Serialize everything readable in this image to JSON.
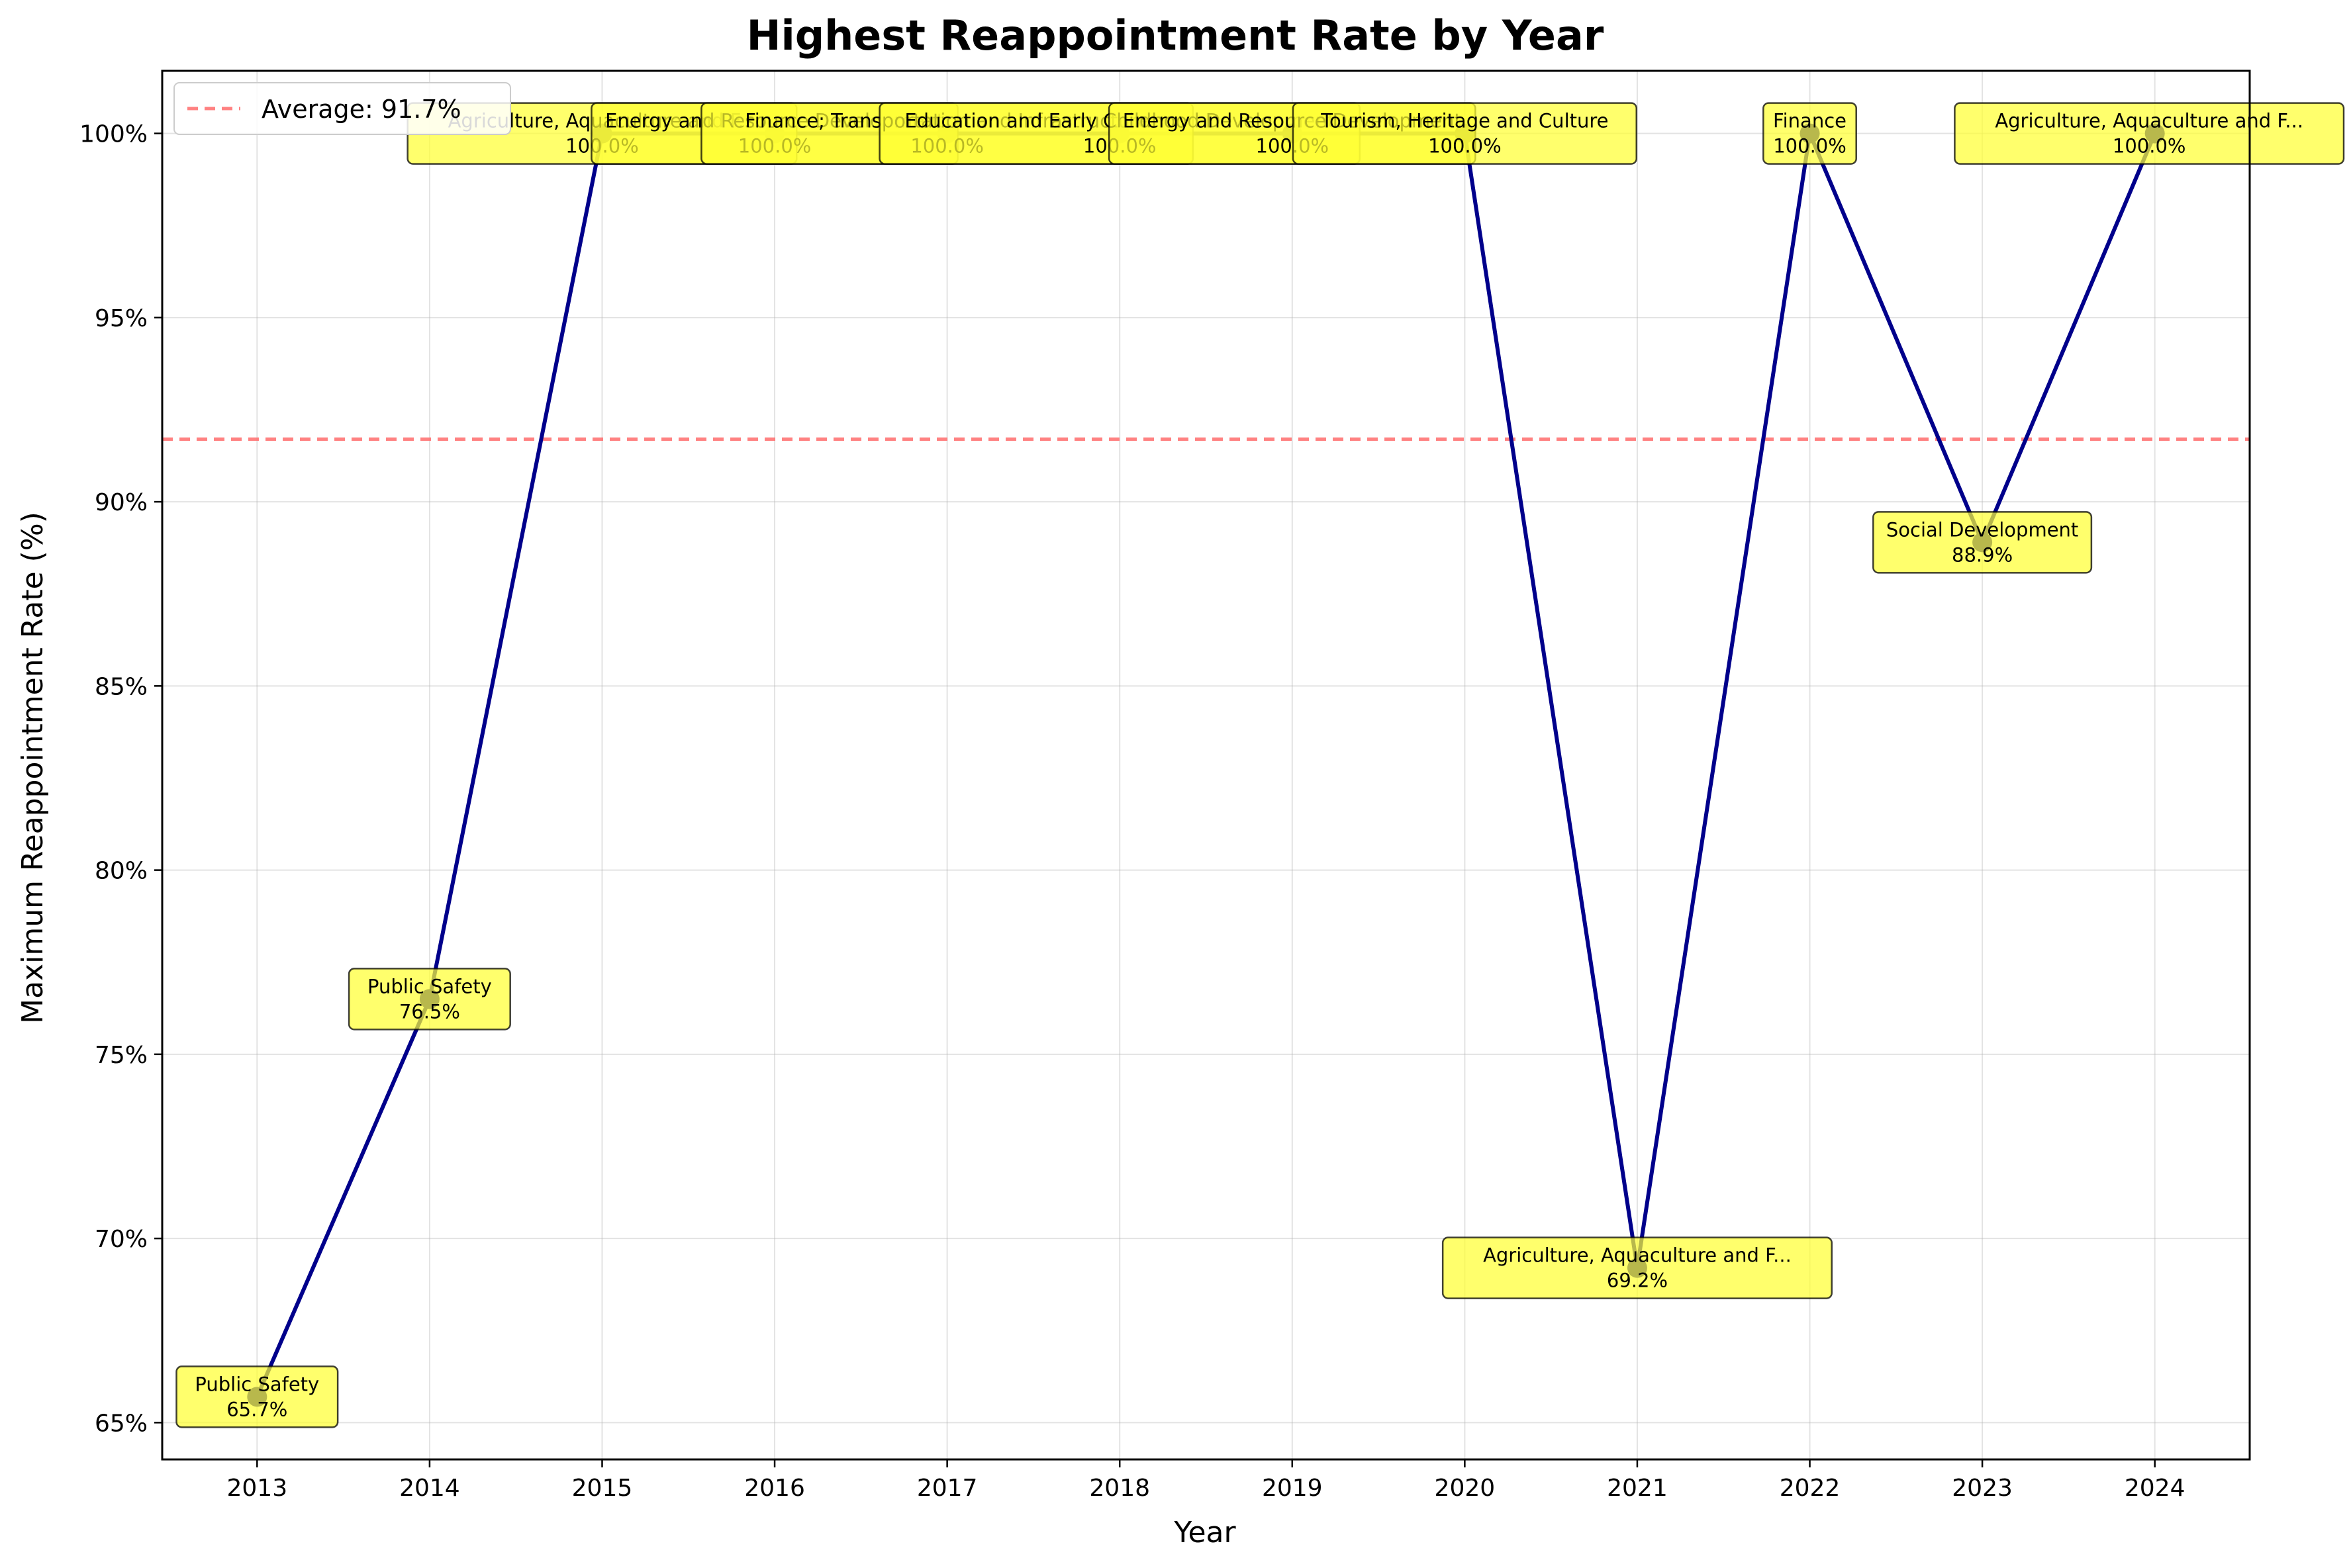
{
  "chart_data": {
    "type": "line",
    "title": "Highest Reappointment Rate by Year",
    "xlabel": "Year",
    "ylabel": "Maximum Reappointment Rate (%)",
    "ylim": [
      64,
      101.7
    ],
    "xlim": [
      2012.45,
      2024.55
    ],
    "grid": true,
    "legend_position": "top-left",
    "line_color": "#00008b",
    "average_color": "#ff6b6b",
    "annotation_fill": "#ffff33",
    "x": [
      2013,
      2014,
      2015,
      2016,
      2017,
      2018,
      2019,
      2020,
      2021,
      2022,
      2023,
      2024
    ],
    "x_tick_labels": [
      "2013",
      "2014",
      "2015",
      "2016",
      "2017",
      "2018",
      "2019",
      "2020",
      "2021",
      "2022",
      "2023",
      "2024"
    ],
    "y_ticks": [
      65,
      70,
      75,
      80,
      85,
      90,
      95,
      100
    ],
    "y_tick_labels": [
      "65%",
      "70%",
      "75%",
      "80%",
      "85%",
      "90%",
      "95%",
      "100%"
    ],
    "values": [
      65.7,
      76.5,
      100.0,
      100.0,
      100.0,
      100.0,
      100.0,
      100.0,
      69.2,
      100.0,
      88.9,
      100.0
    ],
    "point_labels": [
      "Public Safety",
      "Public Safety",
      "Agriculture, Aquaculture and F...",
      "Energy and Resource Development",
      "Finance; Transportation and Infrastructure",
      "Education and Early Childhood Development",
      "Energy and Resource Development",
      "Tourism, Heritage and Culture",
      "Agriculture, Aquaculture and F...",
      "Finance",
      "Social Development",
      "Agriculture, Aquaculture and F..."
    ],
    "value_labels": [
      "65.7%",
      "76.5%",
      "100.0%",
      "100.0%",
      "100.0%",
      "100.0%",
      "100.0%",
      "100.0%",
      "69.2%",
      "100.0%",
      "88.9%",
      "100.0%"
    ],
    "average": 91.7,
    "average_label": "Average: 91.7%"
  }
}
